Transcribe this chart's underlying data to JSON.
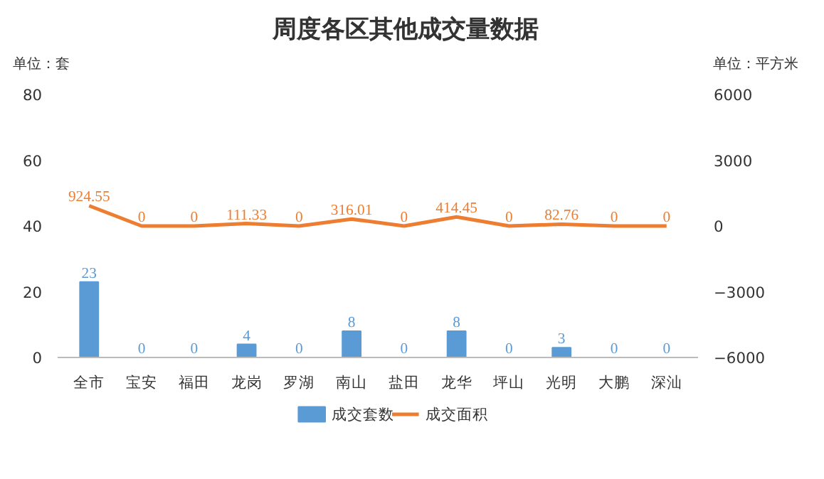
{
  "chart_data": {
    "type": "bar",
    "title": "周度各区其他成交量数据",
    "annotations": [
      "单位：套",
      "单位：平方米"
    ],
    "categories": [
      "全市",
      "宝安",
      "福田",
      "龙岗",
      "罗湖",
      "南山",
      "盐田",
      "龙华",
      "坪山",
      "光明",
      "大鹏",
      "深汕"
    ],
    "series": [
      {
        "name": "成交套数",
        "color": "#5b9bd5",
        "values": [
          23,
          0,
          0,
          4,
          0,
          8,
          0,
          8,
          0,
          3,
          0,
          0
        ]
      },
      {
        "name": "成交面积",
        "type": "line",
        "axis": "y2",
        "color": "#ed7d31",
        "values": [
          924.55,
          0,
          0,
          111.33,
          0,
          316.01,
          0,
          414.45,
          0,
          82.76,
          0,
          0
        ]
      }
    ],
    "ylim": [
      0,
      80
    ],
    "yticks": [
      0,
      20,
      40,
      60,
      80
    ],
    "y2lim": [
      -6000,
      6000
    ],
    "y2ticks": [
      -6000,
      -3000,
      0,
      3000,
      6000
    ],
    "data_labels": true,
    "legend": "bottom",
    "grid": false,
    "marker": "none",
    "line_style": "solid"
  }
}
